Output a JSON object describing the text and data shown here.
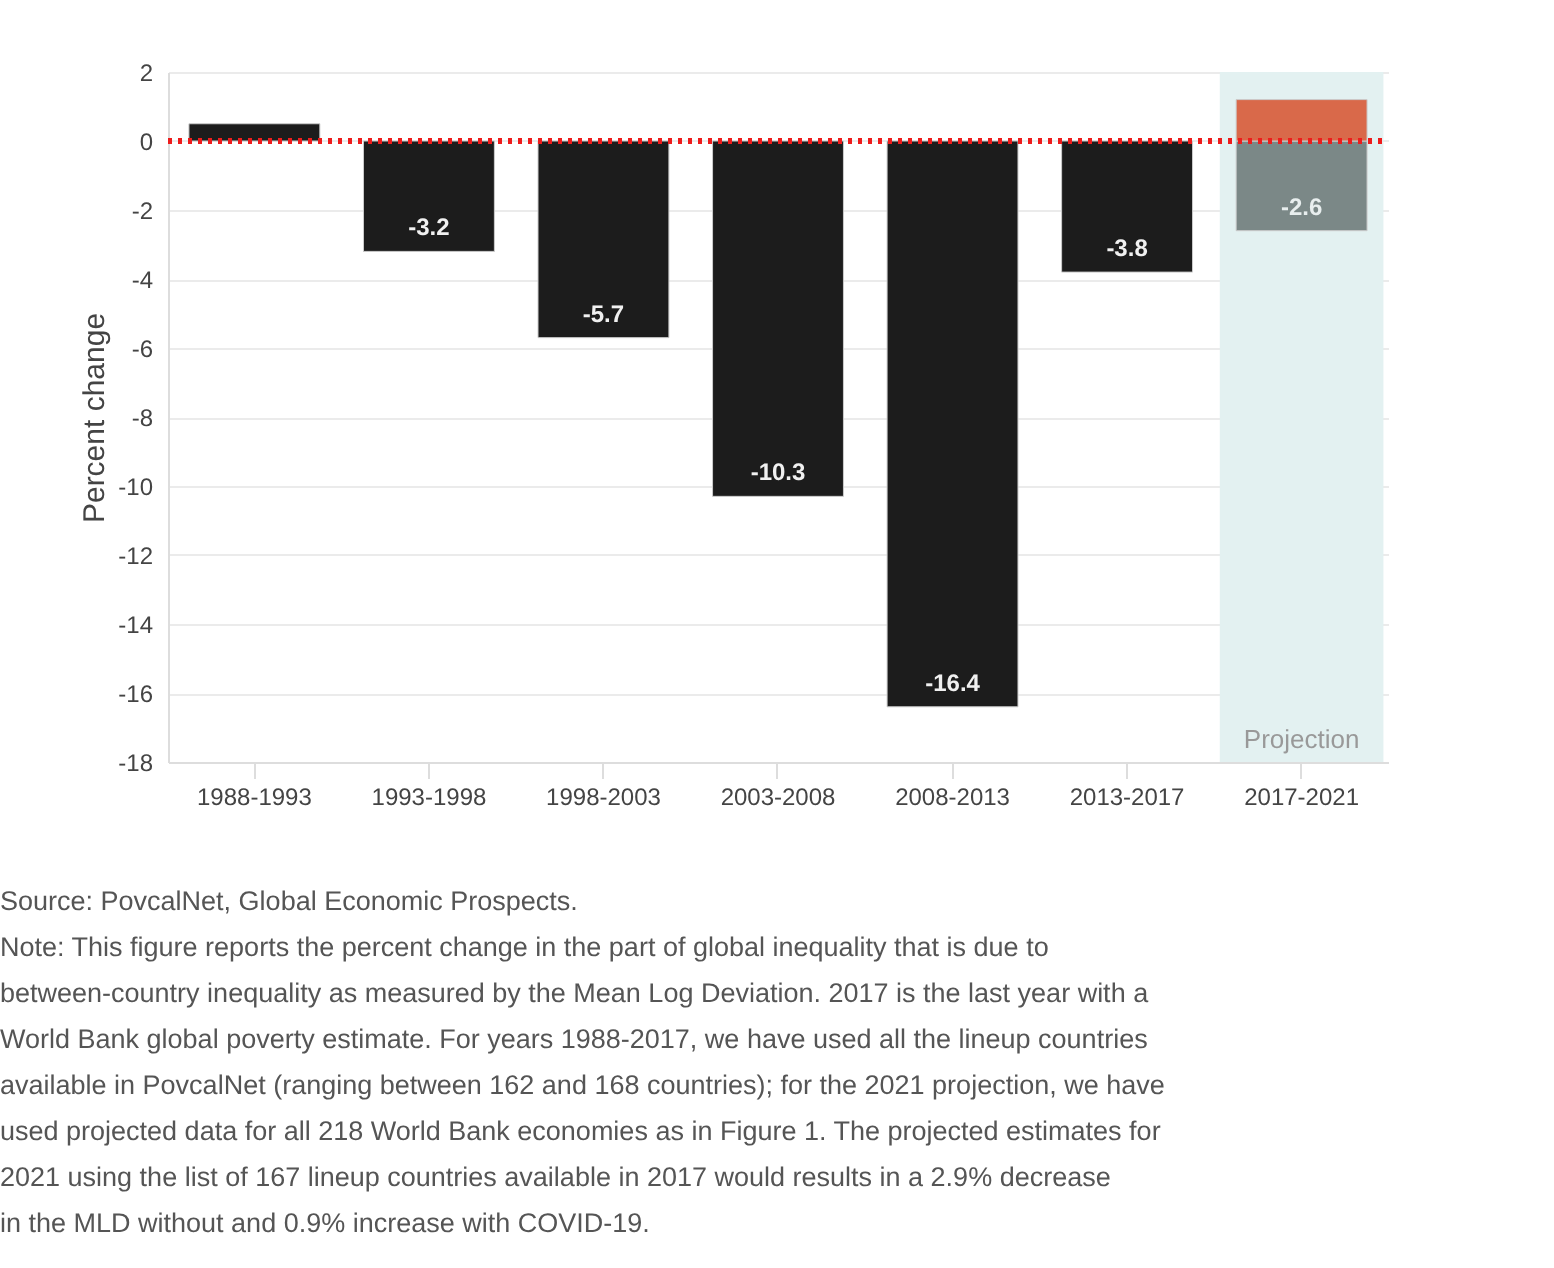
{
  "chart_data": {
    "type": "bar",
    "ylabel": "Percent change",
    "categories": [
      "1988-1993",
      "1993-1998",
      "1998-2003",
      "2003-2008",
      "2008-2013",
      "2013-2017",
      "2017-2021"
    ],
    "stacked": true,
    "series": [
      {
        "color": "#1c1c1c",
        "values": [
          0.5,
          -3.2,
          -5.7,
          -10.3,
          -16.4,
          -3.8,
          null
        ],
        "value_labels": [
          null,
          "-3.2",
          "-5.7",
          "-10.3",
          "-16.4",
          "-3.8",
          null
        ]
      },
      {
        "color": "#7b8887",
        "values": [
          null,
          null,
          null,
          null,
          null,
          null,
          -2.6
        ],
        "value_labels": [
          null,
          null,
          null,
          null,
          null,
          null,
          "-2.6"
        ]
      },
      {
        "color": "#d9694a",
        "values": [
          null,
          null,
          null,
          null,
          null,
          null,
          1.2
        ]
      }
    ],
    "ylim": [
      -18,
      2
    ],
    "yticks": [
      -18,
      -16,
      -14,
      -12,
      -10,
      -8,
      -6,
      -4,
      -2,
      0,
      2
    ],
    "grid": "y",
    "ref_lines": [
      {
        "axis": "y",
        "value": 0,
        "color": "#ee1c1c",
        "line_style": "dotted"
      }
    ],
    "bands": [
      {
        "axis": "x",
        "from": "2017-2021",
        "to": "2017-2021",
        "label": "Projection",
        "color": "#e3f1f1"
      }
    ],
    "annotations": [
      "Source: PovcalNet, Global Economic Prospects.",
      "Note: This figure reports the percent change in the part of global inequality that is due to between-country inequality as measured by the Mean Log Deviation. 2017 is the last year with a World Bank global poverty estimate. For years 1988-2017, we have used all the lineup countries available in PovcalNet (ranging between 162 and 168 countries); for the 2021 projection, we have used projected data for all 218 World Bank economies as in Figure 1. The projected estimates for 2021 using the list of 167 lineup countries available in 2017 would results in a 2.9% decrease in the MLD without and 0.9% increase with COVID-19."
    ]
  }
}
